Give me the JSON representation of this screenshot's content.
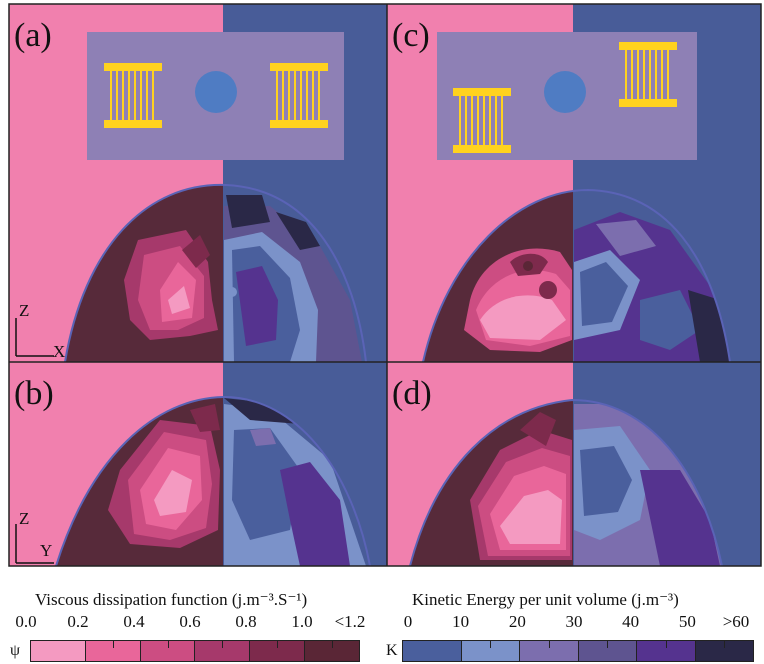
{
  "panels": {
    "a": "(a)",
    "b": "(b)",
    "c": "(c)",
    "d": "(d)"
  },
  "axes": {
    "top_vertical": "Z",
    "top_horizontal": "X",
    "bottom_vertical": "Z",
    "bottom_horizontal": "Y"
  },
  "legend_left": {
    "title": "Viscous dissipation function (j.m⁻³.S⁻¹)",
    "symbol": "ψ",
    "ticks": [
      "0.0",
      "0.2",
      "0.4",
      "0.6",
      "0.8",
      "1.0",
      "<1.2"
    ],
    "colors": [
      "#f49ac1",
      "#e9669a",
      "#cc4d82",
      "#a6396b",
      "#7d2a4c",
      "#5a2636"
    ]
  },
  "legend_right": {
    "title": "Kinetic Energy per unit volume (j.m⁻³)",
    "symbol": "K",
    "ticks": [
      "0",
      "10",
      "20",
      "30",
      "40",
      "50",
      ">60"
    ],
    "colors": [
      "#4a5f9d",
      "#7b92c9",
      "#7c6eae",
      "#5e5490",
      "#55338f",
      "#2a2847"
    ]
  },
  "colors": {
    "pink_bg": "#f180ae",
    "blue_bg": "#485c98",
    "dark_maroon": "#572a3a",
    "inset_box": "#8e80b5",
    "coil": "#ffd21f",
    "sphere": "#4f7cc3"
  }
}
